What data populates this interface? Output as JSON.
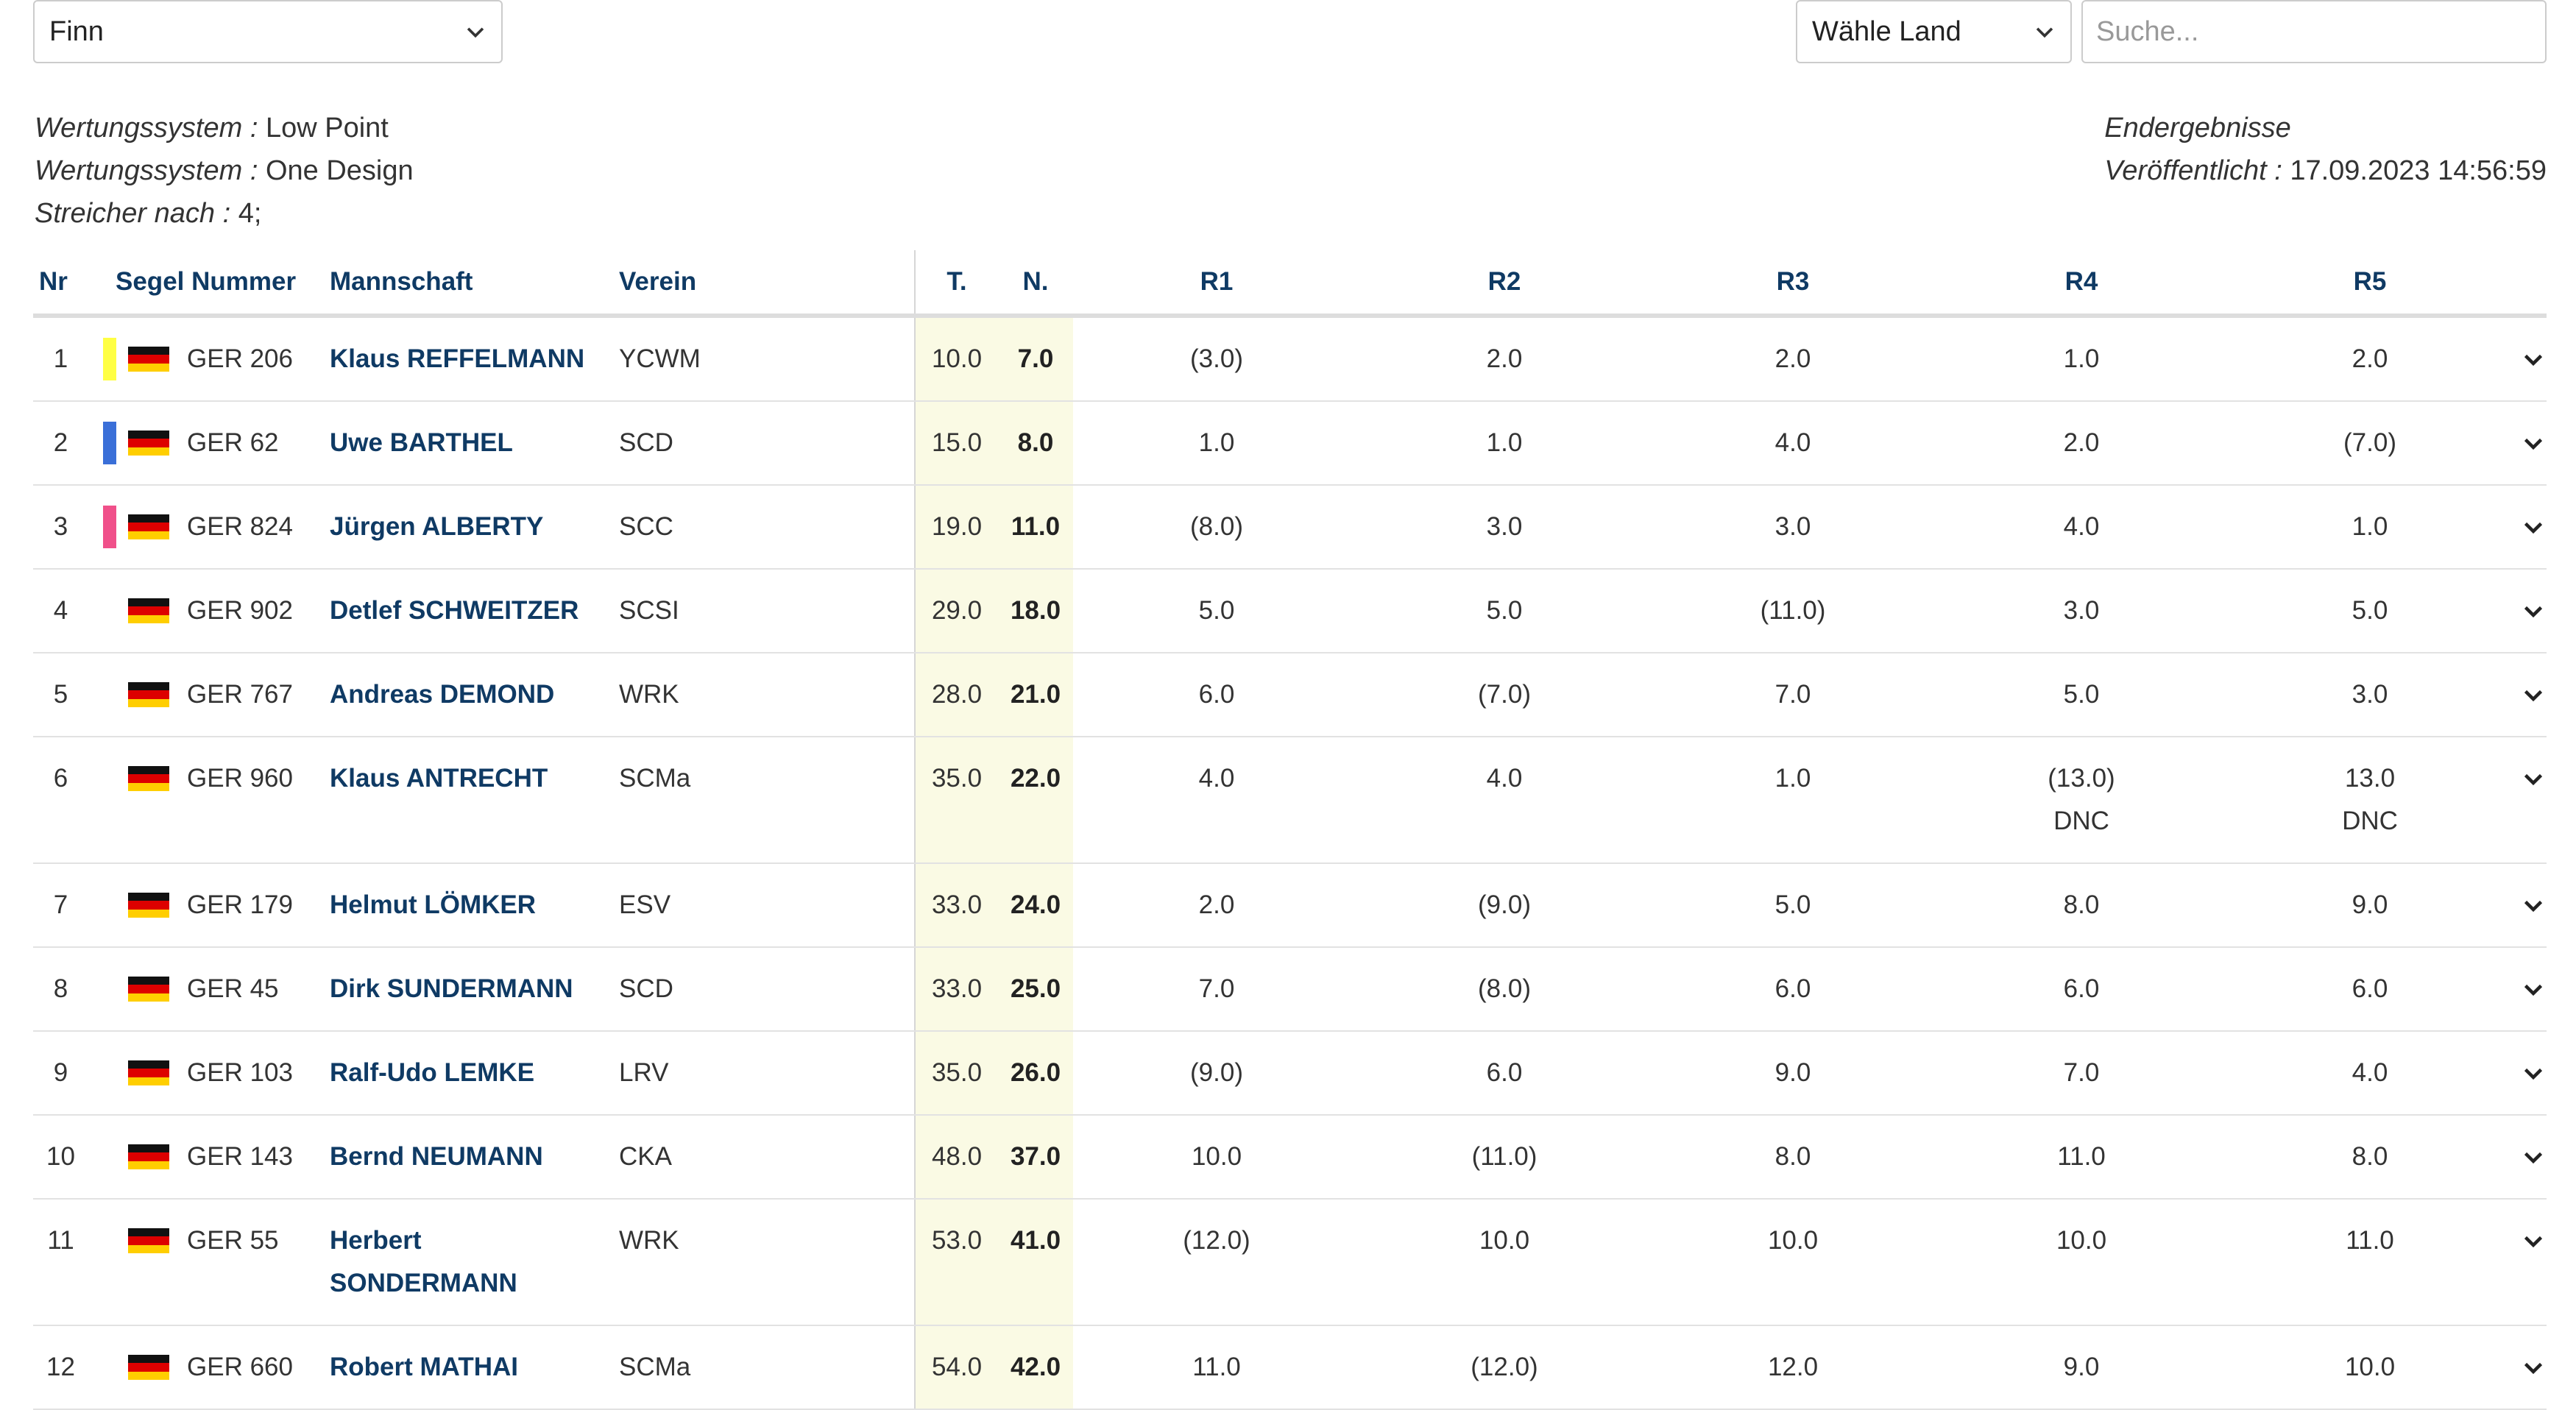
{
  "filters": {
    "class_select": "Finn",
    "country_select": "Wähle Land",
    "search_placeholder": "Suche..."
  },
  "info": {
    "scoring_label": "Wertungssystem :",
    "scoring_value": "Low Point",
    "design_label": "Wertungssystem :",
    "design_value": "One Design",
    "discard_label": "Streicher nach :",
    "discard_value": "4;",
    "status": "Endergebnisse",
    "published_label": "Veröffentlicht :",
    "published_value": "17.09.2023 14:56:59"
  },
  "columns": {
    "nr": "Nr",
    "sail": "Segel Nummer",
    "team": "Mannschaft",
    "club": "Verein",
    "total": "T.",
    "net": "N.",
    "r1": "R1",
    "r2": "R2",
    "r3": "R3",
    "r4": "R4",
    "r5": "R5"
  },
  "colors": {
    "header_text": "#0f3a64",
    "shade": "#fafae4",
    "gold": "#ffff44",
    "silver": "#3a6fd8",
    "bronze": "#f0508a"
  },
  "rows": [
    {
      "nr": "1",
      "medal": "#ffff44",
      "sail": "GER 206",
      "team": [
        "Klaus REFFELMANN"
      ],
      "club": "YCWM",
      "total": "10.0",
      "net": "7.0",
      "r": [
        [
          "(3.0)",
          ""
        ],
        [
          "2.0",
          ""
        ],
        [
          "2.0",
          ""
        ],
        [
          "1.0",
          ""
        ],
        [
          "2.0",
          ""
        ]
      ]
    },
    {
      "nr": "2",
      "medal": "#3a6fd8",
      "sail": "GER 62",
      "team": [
        "Uwe BARTHEL"
      ],
      "club": "SCD",
      "total": "15.0",
      "net": "8.0",
      "r": [
        [
          "1.0",
          ""
        ],
        [
          "1.0",
          ""
        ],
        [
          "4.0",
          ""
        ],
        [
          "2.0",
          ""
        ],
        [
          "(7.0)",
          ""
        ]
      ]
    },
    {
      "nr": "3",
      "medal": "#f0508a",
      "sail": "GER 824",
      "team": [
        "Jürgen ALBERTY"
      ],
      "club": "SCC",
      "total": "19.0",
      "net": "11.0",
      "r": [
        [
          "(8.0)",
          ""
        ],
        [
          "3.0",
          ""
        ],
        [
          "3.0",
          ""
        ],
        [
          "4.0",
          ""
        ],
        [
          "1.0",
          ""
        ]
      ]
    },
    {
      "nr": "4",
      "medal": "",
      "sail": "GER 902",
      "team": [
        "Detlef SCHWEITZER"
      ],
      "club": "SCSI",
      "total": "29.0",
      "net": "18.0",
      "r": [
        [
          "5.0",
          ""
        ],
        [
          "5.0",
          ""
        ],
        [
          "(11.0)",
          ""
        ],
        [
          "3.0",
          ""
        ],
        [
          "5.0",
          ""
        ]
      ]
    },
    {
      "nr": "5",
      "medal": "",
      "sail": "GER 767",
      "team": [
        "Andreas DEMOND"
      ],
      "club": "WRK",
      "total": "28.0",
      "net": "21.0",
      "r": [
        [
          "6.0",
          ""
        ],
        [
          "(7.0)",
          ""
        ],
        [
          "7.0",
          ""
        ],
        [
          "5.0",
          ""
        ],
        [
          "3.0",
          ""
        ]
      ]
    },
    {
      "nr": "6",
      "medal": "",
      "sail": "GER 960",
      "team": [
        "Klaus ANTRECHT"
      ],
      "club": "SCMa",
      "total": "35.0",
      "net": "22.0",
      "r": [
        [
          "4.0",
          ""
        ],
        [
          "4.0",
          ""
        ],
        [
          "1.0",
          ""
        ],
        [
          "(13.0)",
          "DNC"
        ],
        [
          "13.0",
          "DNC"
        ]
      ]
    },
    {
      "nr": "7",
      "medal": "",
      "sail": "GER 179",
      "team": [
        "Helmut LÖMKER"
      ],
      "club": "ESV",
      "total": "33.0",
      "net": "24.0",
      "r": [
        [
          "2.0",
          ""
        ],
        [
          "(9.0)",
          ""
        ],
        [
          "5.0",
          ""
        ],
        [
          "8.0",
          ""
        ],
        [
          "9.0",
          ""
        ]
      ]
    },
    {
      "nr": "8",
      "medal": "",
      "sail": "GER 45",
      "team": [
        "Dirk SUNDERMANN"
      ],
      "club": "SCD",
      "total": "33.0",
      "net": "25.0",
      "r": [
        [
          "7.0",
          ""
        ],
        [
          "(8.0)",
          ""
        ],
        [
          "6.0",
          ""
        ],
        [
          "6.0",
          ""
        ],
        [
          "6.0",
          ""
        ]
      ]
    },
    {
      "nr": "9",
      "medal": "",
      "sail": "GER 103",
      "team": [
        "Ralf-Udo LEMKE"
      ],
      "club": "LRV",
      "total": "35.0",
      "net": "26.0",
      "r": [
        [
          "(9.0)",
          ""
        ],
        [
          "6.0",
          ""
        ],
        [
          "9.0",
          ""
        ],
        [
          "7.0",
          ""
        ],
        [
          "4.0",
          ""
        ]
      ]
    },
    {
      "nr": "10",
      "medal": "",
      "sail": "GER 143",
      "team": [
        "Bernd NEUMANN"
      ],
      "club": "CKA",
      "total": "48.0",
      "net": "37.0",
      "r": [
        [
          "10.0",
          ""
        ],
        [
          "(11.0)",
          ""
        ],
        [
          "8.0",
          ""
        ],
        [
          "11.0",
          ""
        ],
        [
          "8.0",
          ""
        ]
      ]
    },
    {
      "nr": "11",
      "medal": "",
      "sail": "GER 55",
      "team": [
        "Herbert",
        "SONDERMANN"
      ],
      "club": "WRK",
      "total": "53.0",
      "net": "41.0",
      "r": [
        [
          "(12.0)",
          ""
        ],
        [
          "10.0",
          ""
        ],
        [
          "10.0",
          ""
        ],
        [
          "10.0",
          ""
        ],
        [
          "11.0",
          ""
        ]
      ]
    },
    {
      "nr": "12",
      "medal": "",
      "sail": "GER 660",
      "team": [
        "Robert MATHAI"
      ],
      "club": "SCMa",
      "total": "54.0",
      "net": "42.0",
      "r": [
        [
          "11.0",
          ""
        ],
        [
          "(12.0)",
          ""
        ],
        [
          "12.0",
          ""
        ],
        [
          "9.0",
          ""
        ],
        [
          "10.0",
          ""
        ]
      ]
    }
  ]
}
